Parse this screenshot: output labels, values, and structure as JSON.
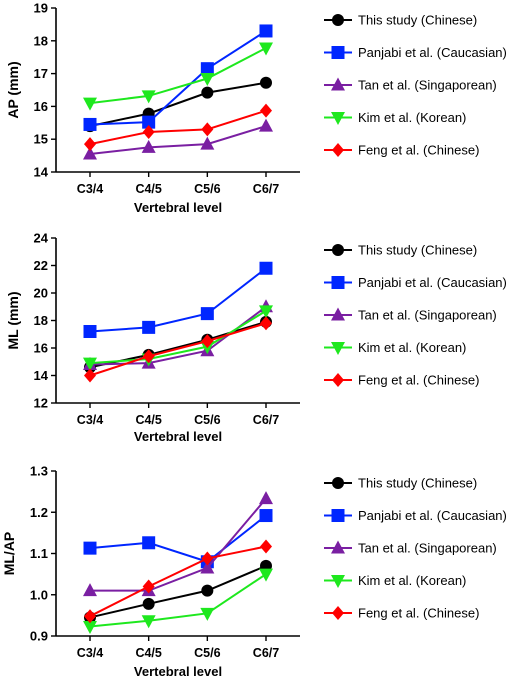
{
  "chart_data": [
    {
      "type": "line",
      "categories": [
        "C3/4",
        "C4/5",
        "C5/6",
        "C6/7"
      ],
      "xlabel": "Vertebral level",
      "ylabel": "AP (mm)",
      "ylim": [
        14,
        19
      ],
      "yticks": [
        "14",
        "15",
        "16",
        "17",
        "18",
        "19"
      ],
      "grid": false,
      "legend_position": "right",
      "series": [
        {
          "name": "This study (Chinese)",
          "color": "#000000",
          "marker": "circle",
          "values": [
            15.4,
            15.78,
            16.42,
            16.72
          ]
        },
        {
          "name": "Panjabi et al. (Caucasian)",
          "color": "#0026ff",
          "marker": "square",
          "values": [
            15.45,
            15.52,
            17.15,
            18.3
          ]
        },
        {
          "name": "Tan et al. (Singaporean)",
          "color": "#7a1fa2",
          "marker": "triangle-up",
          "values": [
            14.55,
            14.75,
            14.85,
            15.4
          ]
        },
        {
          "name": "Kim et al. (Korean)",
          "color": "#1ee81e",
          "marker": "triangle-down",
          "values": [
            16.1,
            16.32,
            16.85,
            17.78
          ]
        },
        {
          "name": "Feng et al. (Chinese)",
          "color": "#ff0000",
          "marker": "diamond",
          "values": [
            14.85,
            15.22,
            15.3,
            15.87
          ]
        }
      ]
    },
    {
      "type": "line",
      "categories": [
        "C3/4",
        "C4/5",
        "C5/6",
        "C6/7"
      ],
      "xlabel": "Vertebral level",
      "ylabel": "ML (mm)",
      "ylim": [
        12,
        24
      ],
      "yticks": [
        "12",
        "14",
        "16",
        "18",
        "20",
        "22",
        "24"
      ],
      "grid": false,
      "legend_position": "right",
      "series": [
        {
          "name": "This study (Chinese)",
          "color": "#000000",
          "marker": "circle",
          "values": [
            14.6,
            15.5,
            16.6,
            17.9
          ]
        },
        {
          "name": "Panjabi et al. (Caucasian)",
          "color": "#0026ff",
          "marker": "square",
          "values": [
            17.2,
            17.5,
            18.5,
            21.8
          ]
        },
        {
          "name": "Tan et al. (Singaporean)",
          "color": "#7a1fa2",
          "marker": "triangle-up",
          "values": [
            14.8,
            14.9,
            15.8,
            19.0
          ]
        },
        {
          "name": "Kim et al. (Korean)",
          "color": "#1ee81e",
          "marker": "triangle-down",
          "values": [
            14.9,
            15.2,
            16.1,
            18.7
          ]
        },
        {
          "name": "Feng et al. (Chinese)",
          "color": "#ff0000",
          "marker": "diamond",
          "values": [
            14.0,
            15.4,
            16.5,
            17.8
          ]
        }
      ]
    },
    {
      "type": "line",
      "categories": [
        "C3/4",
        "C4/5",
        "C5/6",
        "C6/7"
      ],
      "xlabel": "Vertebral level",
      "ylabel": "ML/AP",
      "ylim": [
        0.9,
        1.3
      ],
      "yticks": [
        "0.9",
        "1.0",
        "1.1",
        "1.2",
        "1.3"
      ],
      "grid": false,
      "legend_position": "right",
      "series": [
        {
          "name": "This study (Chinese)",
          "color": "#000000",
          "marker": "circle",
          "values": [
            0.945,
            0.978,
            1.01,
            1.07
          ]
        },
        {
          "name": "Panjabi et al. (Caucasian)",
          "color": "#0026ff",
          "marker": "square",
          "values": [
            1.113,
            1.126,
            1.08,
            1.192
          ]
        },
        {
          "name": "Tan et al. (Singaporean)",
          "color": "#7a1fa2",
          "marker": "triangle-up",
          "values": [
            1.01,
            1.01,
            1.065,
            1.233
          ]
        },
        {
          "name": "Kim et al. (Korean)",
          "color": "#1ee81e",
          "marker": "triangle-down",
          "values": [
            0.923,
            0.937,
            0.955,
            1.05
          ]
        },
        {
          "name": "Feng et al. (Chinese)",
          "color": "#ff0000",
          "marker": "diamond",
          "values": [
            0.948,
            1.02,
            1.088,
            1.117
          ]
        }
      ]
    }
  ]
}
